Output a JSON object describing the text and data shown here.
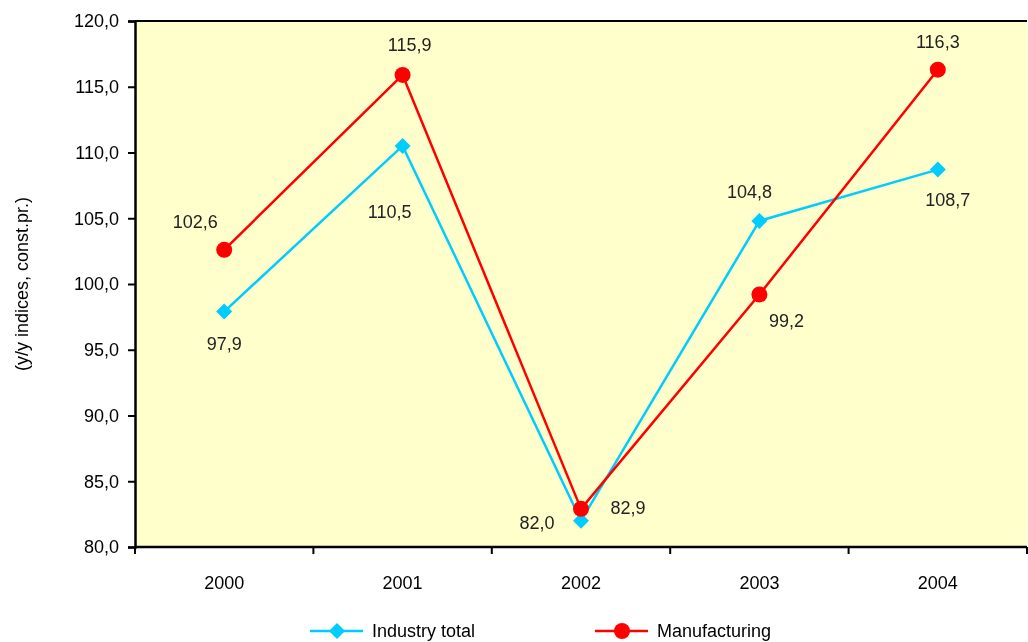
{
  "chart_data": {
    "type": "line",
    "categories": [
      "2000",
      "2001",
      "2002",
      "2003",
      "2004"
    ],
    "ylabel": "(y/y indices, const.pr.)",
    "ylim": [
      80,
      120
    ],
    "yticks": [
      {
        "value": 80,
        "label": "80,0"
      },
      {
        "value": 85,
        "label": "85,0"
      },
      {
        "value": 90,
        "label": "90,0"
      },
      {
        "value": 95,
        "label": "95,0"
      },
      {
        "value": 100,
        "label": "100,0"
      },
      {
        "value": 105,
        "label": "105,0"
      },
      {
        "value": 110,
        "label": "110,0"
      },
      {
        "value": 115,
        "label": "115,0"
      },
      {
        "value": 120,
        "label": "120,0"
      }
    ],
    "series": [
      {
        "name": "Industry total",
        "color": "#00ccff",
        "marker": "diamond",
        "values": [
          97.9,
          110.5,
          82.0,
          104.8,
          108.7
        ],
        "value_labels": [
          "97,9",
          "110,5",
          "82,0",
          "104,8",
          "108,7"
        ]
      },
      {
        "name": "Manufacturing",
        "color": "#ff0000",
        "marker": "circle",
        "values": [
          102.6,
          115.9,
          82.9,
          99.2,
          116.3
        ],
        "value_labels": [
          "102,6",
          "115,9",
          "82,9",
          "99,2",
          "116,3"
        ]
      }
    ],
    "legend": "bottom"
  }
}
